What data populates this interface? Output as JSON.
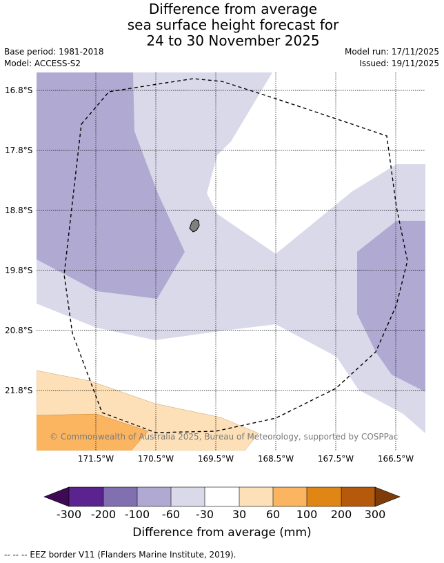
{
  "title": {
    "line1": "Difference from average",
    "line2": "sea surface height forecast for",
    "line3": "24 to 30 November 2025"
  },
  "meta": {
    "base_period": "Base period: 1981-2018",
    "model": "Model: ACCESS-S2",
    "model_run": "Model run: 17/11/2025",
    "issued": "Issued: 19/11/2025"
  },
  "map": {
    "lat_labels": [
      "16.8°S",
      "17.8°S",
      "18.8°S",
      "19.8°S",
      "20.8°S",
      "21.8°S"
    ],
    "lon_labels": [
      "171.5°W",
      "170.5°W",
      "169.5°W",
      "168.5°W",
      "167.5°W",
      "166.5°W"
    ],
    "credit": "© Commonwealth of Australia 2025, Bureau of Meteorology, supported by COSPPac",
    "colors": {
      "neg_100_60": "#b0aad2",
      "neg_60_30": "#d9d9ea",
      "pos_30_60": "#fde0b7",
      "pos_60_100": "#fbb561",
      "land": "#808080",
      "eez": "#000000"
    }
  },
  "colorbar": {
    "title": "Difference from average (mm)",
    "ticks": [
      "-300",
      "-200",
      "-100",
      "-60",
      "-30",
      "30",
      "60",
      "100",
      "200",
      "300"
    ],
    "colors": [
      "#3e0a54",
      "#5a2390",
      "#8070b0",
      "#b0aad2",
      "#d9d9ea",
      "#ffffff",
      "#fde0b7",
      "#fbb561",
      "#e08614",
      "#b55a0a",
      "#7f3b0a"
    ]
  },
  "footnote": "-- -- -- EEZ border V11 (Flanders Marine Institute, 2019)."
}
